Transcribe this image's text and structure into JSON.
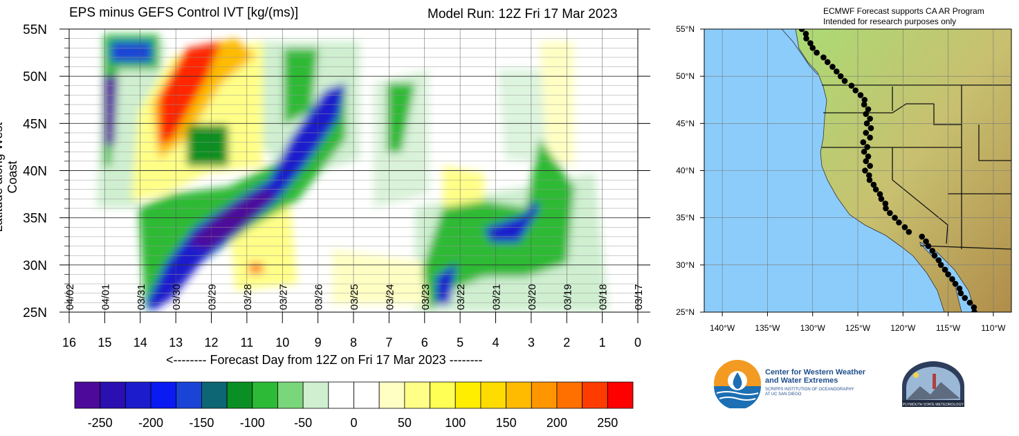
{
  "header": {
    "title": "EPS minus GEFS Control IVT [kg/(ms)]",
    "model_run": "Model Run: 12Z Fri 17 Mar 2023"
  },
  "axes": {
    "ylabel": "Latitude along West Coast",
    "xlabel": "<-------- Forecast Day from 12Z on Fri 17 Mar 2023 --------",
    "y_ticks": [
      "25N",
      "30N",
      "35N",
      "40N",
      "45N",
      "50N",
      "55N"
    ],
    "x_ticks": [
      "16",
      "15",
      "14",
      "13",
      "12",
      "11",
      "10",
      "9",
      "8",
      "7",
      "6",
      "5",
      "4",
      "3",
      "2",
      "1",
      "0"
    ],
    "date_labels": [
      "04/02",
      "04/01",
      "03/31",
      "03/30",
      "03/29",
      "03/28",
      "03/27",
      "03/26",
      "03/25",
      "03/24",
      "03/23",
      "03/22",
      "03/21",
      "03/20",
      "03/19",
      "03/18",
      "03/17"
    ]
  },
  "colorbar": {
    "labels": [
      "-250",
      "-200",
      "-150",
      "-100",
      "-50",
      "0",
      "50",
      "100",
      "150",
      "200",
      "250"
    ],
    "colors": [
      "#4d0a9a",
      "#2a10b0",
      "#1c1ccc",
      "#0a1af2",
      "#1a44d6",
      "#0d6674",
      "#0a8f24",
      "#2dba36",
      "#7ad67a",
      "#cfefd0",
      "#ffffff",
      "#ffffff",
      "#ffffc4",
      "#ffff88",
      "#ffff55",
      "#ffee00",
      "#ffdc00",
      "#ffbb00",
      "#ff9600",
      "#ff7000",
      "#ff3c00",
      "#ff0000"
    ]
  },
  "map": {
    "notice_line1": "ECMWF Forecast supports CA AR Program",
    "notice_line2": "Intended for research purposes only",
    "lat_labels": [
      "55°N",
      "50°N",
      "45°N",
      "40°N",
      "35°N",
      "30°N",
      "25°N"
    ],
    "lon_labels": [
      "140°W",
      "135°W",
      "130°W",
      "125°W",
      "120°W",
      "115°W",
      "110°W"
    ],
    "ocean_color": "#8cccfa",
    "land_color": "#9fd46a"
  },
  "logos": {
    "cw3e_line1": "Center for Western Weather",
    "cw3e_line2": "and Water Extremes",
    "cw3e_sub1": "SCRIPPS INSTITUTION OF OCEANOGRAPHY",
    "cw3e_sub2": "AT UC SAN DIEGO",
    "psu_text": "PLYMOUTH STATE METEOROLOGY"
  },
  "chart_data": {
    "type": "heatmap",
    "title": "EPS minus GEFS Control IVT [kg/(ms)]",
    "xlabel": "<-------- Forecast Day from 12Z on Fri 17 Mar 2023 --------",
    "ylabel": "Latitude along West Coast",
    "x_range": [
      16,
      0
    ],
    "y_range": [
      25,
      55
    ],
    "units": "kg/(ms)",
    "features": [
      {
        "label": "positive max (red/orange)",
        "x": [
          13.5,
          11.5
        ],
        "y": [
          42,
          54
        ],
        "value": 250
      },
      {
        "label": "positive yellow band",
        "x": [
          14,
          10
        ],
        "y": [
          38,
          55
        ],
        "value": 75
      },
      {
        "label": "negative band (blue/purple)",
        "x": [
          14,
          8.2
        ],
        "y": [
          25,
          48
        ],
        "value": -200
      },
      {
        "label": "negative cluster",
        "x": [
          15,
          14
        ],
        "y": [
          42,
          54
        ],
        "value": -150
      },
      {
        "label": "negative cluster",
        "x": [
          5.2,
          2.8
        ],
        "y": [
          25,
          38
        ],
        "value": -100
      },
      {
        "label": "positive patch",
        "x": [
          11.5,
          10.5
        ],
        "y": [
          28,
          35
        ],
        "value": 100
      }
    ]
  }
}
